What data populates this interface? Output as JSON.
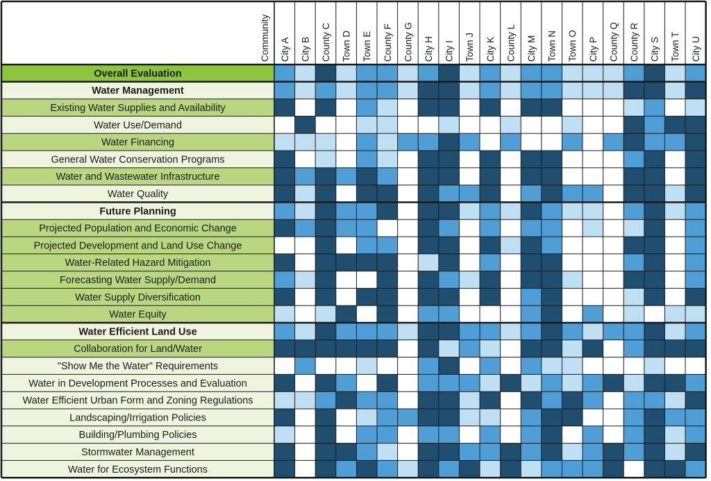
{
  "chart_data": {
    "type": "heatmap",
    "corner_label": "Community",
    "columns": [
      "City A",
      "City B",
      "County C",
      "Town D",
      "Town E",
      "County F",
      "County G",
      "City H",
      "City I",
      "Town J",
      "City K",
      "County L",
      "City M",
      "Town N",
      "Town O",
      "City P",
      "County Q",
      "County R",
      "City S",
      "Town T",
      "City U"
    ],
    "rows": [
      {
        "label": "Overall Evaluation",
        "kind": "overall",
        "values": [
          2,
          1,
          3,
          1,
          2,
          2,
          1,
          2,
          3,
          1,
          2,
          1,
          2,
          2,
          1,
          1,
          1,
          2,
          3,
          1,
          2
        ]
      },
      {
        "label": "Water Management",
        "kind": "section",
        "values": [
          2,
          1,
          2,
          1,
          2,
          2,
          1,
          3,
          3,
          1,
          2,
          1,
          2,
          2,
          1,
          1,
          1,
          3,
          3,
          1,
          3
        ]
      },
      {
        "label": "Existing Water Supplies and Availability",
        "kind": "future",
        "values": [
          3,
          0,
          3,
          0,
          2,
          1,
          0,
          3,
          3,
          0,
          3,
          0,
          3,
          3,
          0,
          0,
          0,
          1,
          2,
          0,
          1
        ]
      },
      {
        "label": "Water Use/Demand",
        "kind": "management",
        "values": [
          0,
          3,
          0,
          0,
          1,
          1,
          0,
          0,
          1,
          0,
          0,
          1,
          0,
          0,
          1,
          0,
          0,
          3,
          2,
          3,
          3
        ]
      },
      {
        "label": "Water Financing",
        "kind": "future",
        "values": [
          1,
          1,
          1,
          0,
          2,
          1,
          2,
          2,
          3,
          2,
          0,
          2,
          0,
          0,
          2,
          0,
          2,
          3,
          2,
          2,
          3
        ]
      },
      {
        "label": "General Water Conservation Programs",
        "kind": "management",
        "values": [
          3,
          0,
          1,
          0,
          2,
          1,
          0,
          3,
          3,
          0,
          3,
          0,
          3,
          3,
          0,
          0,
          0,
          2,
          3,
          0,
          3
        ]
      },
      {
        "label": "Water and Wastewater Infrastructure",
        "kind": "future",
        "values": [
          3,
          2,
          3,
          2,
          3,
          2,
          0,
          3,
          3,
          0,
          3,
          0,
          3,
          3,
          0,
          0,
          0,
          3,
          3,
          0,
          3
        ]
      },
      {
        "label": "Water Quality",
        "kind": "management",
        "values": [
          3,
          1,
          3,
          0,
          3,
          3,
          0,
          3,
          2,
          2,
          3,
          0,
          2,
          3,
          2,
          2,
          0,
          3,
          3,
          1,
          3
        ]
      },
      {
        "label": "Future Planning",
        "kind": "section",
        "values": [
          2,
          1,
          3,
          2,
          2,
          3,
          0,
          3,
          3,
          1,
          2,
          1,
          3,
          2,
          1,
          1,
          0,
          2,
          3,
          1,
          2
        ]
      },
      {
        "label": "Projected Population and Economic Change",
        "kind": "future",
        "values": [
          3,
          2,
          3,
          2,
          2,
          0,
          0,
          3,
          2,
          0,
          2,
          0,
          2,
          2,
          0,
          1,
          0,
          1,
          3,
          0,
          2
        ]
      },
      {
        "label": "Projected Development and Land Use Change",
        "kind": "future",
        "values": [
          0,
          0,
          3,
          0,
          2,
          2,
          0,
          3,
          3,
          0,
          3,
          1,
          3,
          2,
          0,
          0,
          0,
          3,
          3,
          0,
          2
        ]
      },
      {
        "label": "Water-Related Hazard Mitigation",
        "kind": "future",
        "values": [
          3,
          0,
          3,
          3,
          3,
          3,
          0,
          1,
          3,
          0,
          2,
          0,
          3,
          3,
          0,
          0,
          0,
          2,
          3,
          0,
          2
        ]
      },
      {
        "label": "Forecasting Water Supply/Demand",
        "kind": "future",
        "values": [
          2,
          1,
          3,
          0,
          0,
          3,
          0,
          3,
          2,
          1,
          3,
          0,
          3,
          3,
          1,
          0,
          0,
          3,
          3,
          0,
          2
        ]
      },
      {
        "label": "Water Supply Diversification",
        "kind": "future",
        "values": [
          3,
          0,
          3,
          0,
          3,
          3,
          0,
          3,
          3,
          0,
          3,
          0,
          2,
          3,
          0,
          0,
          0,
          1,
          3,
          0,
          3
        ]
      },
      {
        "label": "Water Equity",
        "kind": "future",
        "values": [
          1,
          0,
          1,
          3,
          0,
          3,
          0,
          2,
          2,
          0,
          0,
          0,
          2,
          3,
          0,
          2,
          0,
          1,
          0,
          1,
          1
        ]
      },
      {
        "label": "Water Efficient Land Use",
        "kind": "section",
        "values": [
          2,
          1,
          3,
          2,
          2,
          2,
          1,
          3,
          3,
          2,
          2,
          1,
          2,
          3,
          2,
          1,
          2,
          2,
          3,
          1,
          2
        ]
      },
      {
        "label": "Collaboration for Land/Water",
        "kind": "future",
        "values": [
          3,
          3,
          3,
          3,
          3,
          3,
          0,
          3,
          1,
          2,
          1,
          0,
          3,
          3,
          1,
          3,
          0,
          2,
          3,
          3,
          3
        ]
      },
      {
        "label": "\"Show Me the Water\" Requirements",
        "kind": "management",
        "values": [
          0,
          2,
          0,
          0,
          1,
          0,
          0,
          2,
          3,
          0,
          2,
          0,
          2,
          1,
          1,
          0,
          0,
          0,
          1,
          0,
          0
        ]
      },
      {
        "label": "Water in Development Processes and Evaluation",
        "kind": "management",
        "values": [
          3,
          0,
          3,
          2,
          0,
          3,
          0,
          2,
          2,
          2,
          1,
          3,
          1,
          2,
          1,
          2,
          3,
          1,
          3,
          3,
          2
        ]
      },
      {
        "label": "Water Efficient Urban Form and Zoning Regulations",
        "kind": "management",
        "values": [
          1,
          1,
          2,
          3,
          2,
          2,
          0,
          3,
          3,
          1,
          3,
          0,
          3,
          2,
          3,
          2,
          0,
          2,
          2,
          1,
          3
        ]
      },
      {
        "label": "Landscaping/Irrigation Policies",
        "kind": "management",
        "values": [
          3,
          0,
          3,
          0,
          1,
          2,
          2,
          3,
          3,
          1,
          1,
          0,
          2,
          3,
          3,
          0,
          0,
          2,
          3,
          2,
          2
        ]
      },
      {
        "label": "Building/Plumbing Policies",
        "kind": "management",
        "values": [
          1,
          0,
          3,
          0,
          2,
          2,
          0,
          2,
          2,
          0,
          2,
          0,
          2,
          3,
          0,
          2,
          0,
          2,
          3,
          1,
          2
        ]
      },
      {
        "label": "Stormwater Management",
        "kind": "management",
        "values": [
          3,
          0,
          3,
          3,
          2,
          1,
          0,
          3,
          3,
          2,
          2,
          3,
          2,
          3,
          1,
          2,
          3,
          2,
          3,
          1,
          3
        ]
      },
      {
        "label": "Water for Ecosystem Functions",
        "kind": "management",
        "values": [
          3,
          0,
          3,
          2,
          3,
          2,
          1,
          3,
          2,
          3,
          1,
          3,
          1,
          2,
          2,
          2,
          3,
          0,
          3,
          3,
          2
        ]
      }
    ],
    "level_colors": [
      "#ffffff",
      "#bfe0f2",
      "#4f9fd6",
      "#1f4e6e"
    ],
    "row_label_colors": {
      "overall": "#8cc63e",
      "section": "#eef4dd",
      "future": "#b9d77e",
      "management": "#eef4dd"
    },
    "grid_color": "#1a1a1a"
  }
}
